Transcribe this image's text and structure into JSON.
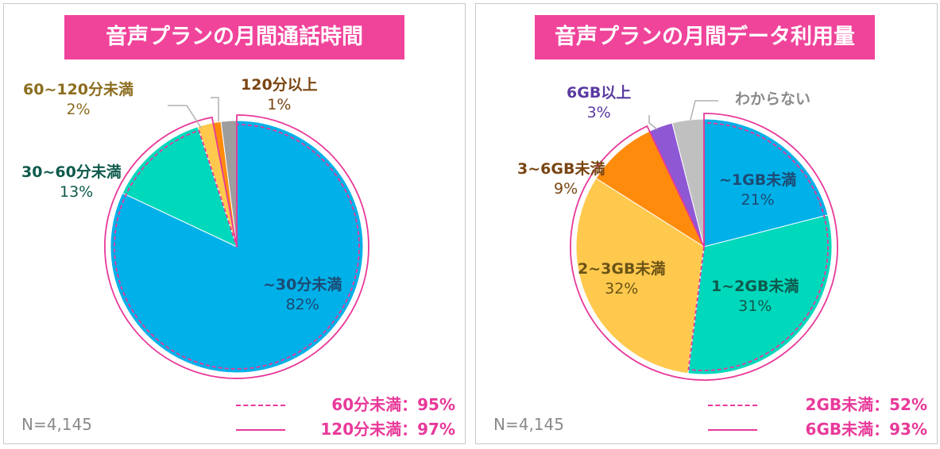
{
  "colors": {
    "title_bg": "#f0449b",
    "accent_pink": "#e8399a",
    "slice_blue": "#00b0e8",
    "slice_teal": "#00d8bc",
    "slice_yellow": "#ffc94e",
    "slice_orange": "#ff8b0c",
    "slice_gray": "#9d9d9d",
    "slice_purple": "#8e58d4",
    "slice_lightgray": "#c0c0c0"
  },
  "left": {
    "title": "音声プランの月間通話時間",
    "n_label": "N=4,145",
    "slices": [
      {
        "label": "~30分未満",
        "pct": "82%"
      },
      {
        "label": "30~60分未満",
        "pct": "13%"
      },
      {
        "label": "60~120分未満",
        "pct": "2%"
      },
      {
        "label": "120分以上",
        "pct": "1%"
      }
    ],
    "legend": [
      {
        "style": "dashed",
        "text": "60分未満：95%"
      },
      {
        "style": "solid",
        "text": "120分未満：97%"
      }
    ]
  },
  "right": {
    "title": "音声プランの月間データ利用量",
    "n_label": "N=4,145",
    "slices": [
      {
        "label": "~1GB未満",
        "pct": "21%"
      },
      {
        "label": "1~2GB未満",
        "pct": "31%"
      },
      {
        "label": "2~3GB未満",
        "pct": "32%"
      },
      {
        "label": "3~6GB未満",
        "pct": "9%"
      },
      {
        "label": "6GB以上",
        "pct": "3%"
      },
      {
        "label": "わからない",
        "pct": ""
      }
    ],
    "legend": [
      {
        "style": "dashed",
        "text": "2GB未満：52%"
      },
      {
        "style": "solid",
        "text": "6GB未満：93%"
      }
    ]
  },
  "chart_data": [
    {
      "type": "pie",
      "title": "音声プランの月間通話時間",
      "categories": [
        "~30分未満",
        "30~60分未満",
        "60~120分未満",
        "120分以上",
        ""
      ],
      "values": [
        82,
        13,
        2,
        1,
        2
      ],
      "colors": [
        "#00b0e8",
        "#00d8bc",
        "#ffc94e",
        "#ff8b0c",
        "#9d9d9d"
      ],
      "start": "12 o'clock",
      "direction": "clockwise",
      "cumulative_markers": [
        {
          "label": "60分未満：95%",
          "value": 95,
          "style": "dashed"
        },
        {
          "label": "120分未満：97%",
          "value": 97,
          "style": "solid"
        }
      ]
    },
    {
      "type": "pie",
      "title": "音声プランの月間データ利用量",
      "categories": [
        "~1GB未満",
        "1~2GB未満",
        "2~3GB未満",
        "3~6GB未満",
        "6GB以上",
        "わからない"
      ],
      "values": [
        21,
        31,
        32,
        9,
        3,
        4
      ],
      "colors": [
        "#00b0e8",
        "#00d8bc",
        "#ffc94e",
        "#ff8b0c",
        "#8e58d4",
        "#c0c0c0"
      ],
      "start": "12 o'clock",
      "direction": "clockwise",
      "cumulative_markers": [
        {
          "label": "2GB未満：52%",
          "value": 52,
          "style": "dashed"
        },
        {
          "label": "6GB未満：93%",
          "value": 93,
          "style": "solid"
        }
      ]
    }
  ]
}
